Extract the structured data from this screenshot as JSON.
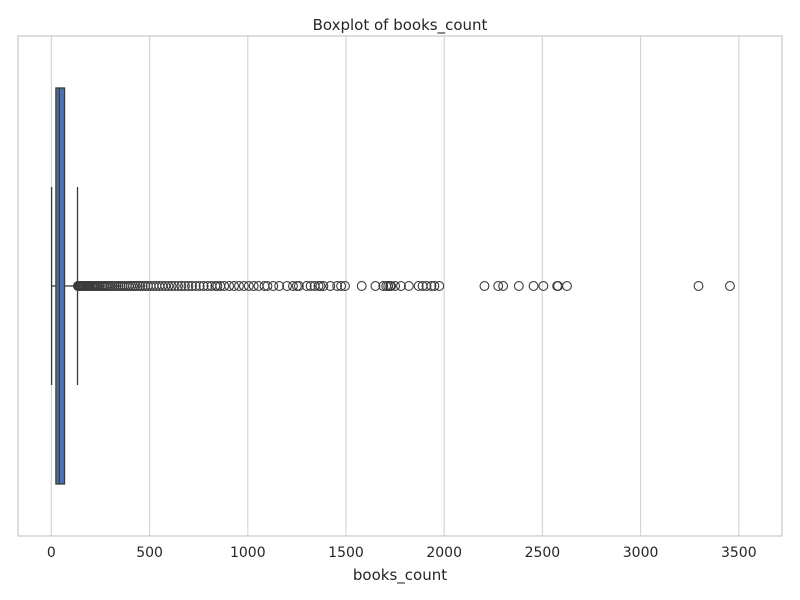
{
  "chart_data": {
    "type": "box",
    "title": "Boxplot of books_count",
    "xlabel": "books_count",
    "ylabel": "",
    "orientation": "horizontal",
    "xlim": [
      -170,
      3720
    ],
    "xticks": [
      0,
      500,
      1000,
      1500,
      2000,
      2500,
      3000,
      3500
    ],
    "grid": true,
    "colors": {
      "box_fill": "#4c72b0",
      "line": "#3b3b3b",
      "grid": "#d6d6d6",
      "frame": "#cccccc"
    },
    "series": [
      {
        "min": 1,
        "q1": 23,
        "median": 40,
        "q3": 67,
        "whisker_low": 1,
        "whisker_high": 133,
        "outliers": [
          135,
          138,
          142,
          146,
          150,
          155,
          160,
          165,
          170,
          176,
          182,
          188,
          194,
          200,
          207,
          214,
          221,
          228,
          236,
          244,
          252,
          260,
          268,
          276,
          285,
          294,
          303,
          312,
          322,
          332,
          342,
          352,
          362,
          372,
          383,
          394,
          405,
          416,
          428,
          440,
          452,
          465,
          478,
          491,
          505,
          520,
          535,
          550,
          565,
          580,
          596,
          612,
          628,
          645,
          662,
          680,
          698,
          716,
          735,
          755,
          775,
          795,
          815,
          835,
          845,
          860,
          880,
          905,
          930,
          955,
          980,
          1005,
          1030,
          1055,
          1085,
          1100,
          1130,
          1160,
          1200,
          1230,
          1250,
          1260,
          1300,
          1320,
          1340,
          1360,
          1370,
          1385,
          1420,
          1455,
          1475,
          1495,
          1580,
          1650,
          1690,
          1705,
          1715,
          1725,
          1730,
          1750,
          1780,
          1820,
          1870,
          1890,
          1910,
          1935,
          1950,
          1975,
          2205,
          2275,
          2300,
          2380,
          2455,
          2505,
          2575,
          2580,
          2625,
          3295,
          3455
        ]
      }
    ]
  }
}
